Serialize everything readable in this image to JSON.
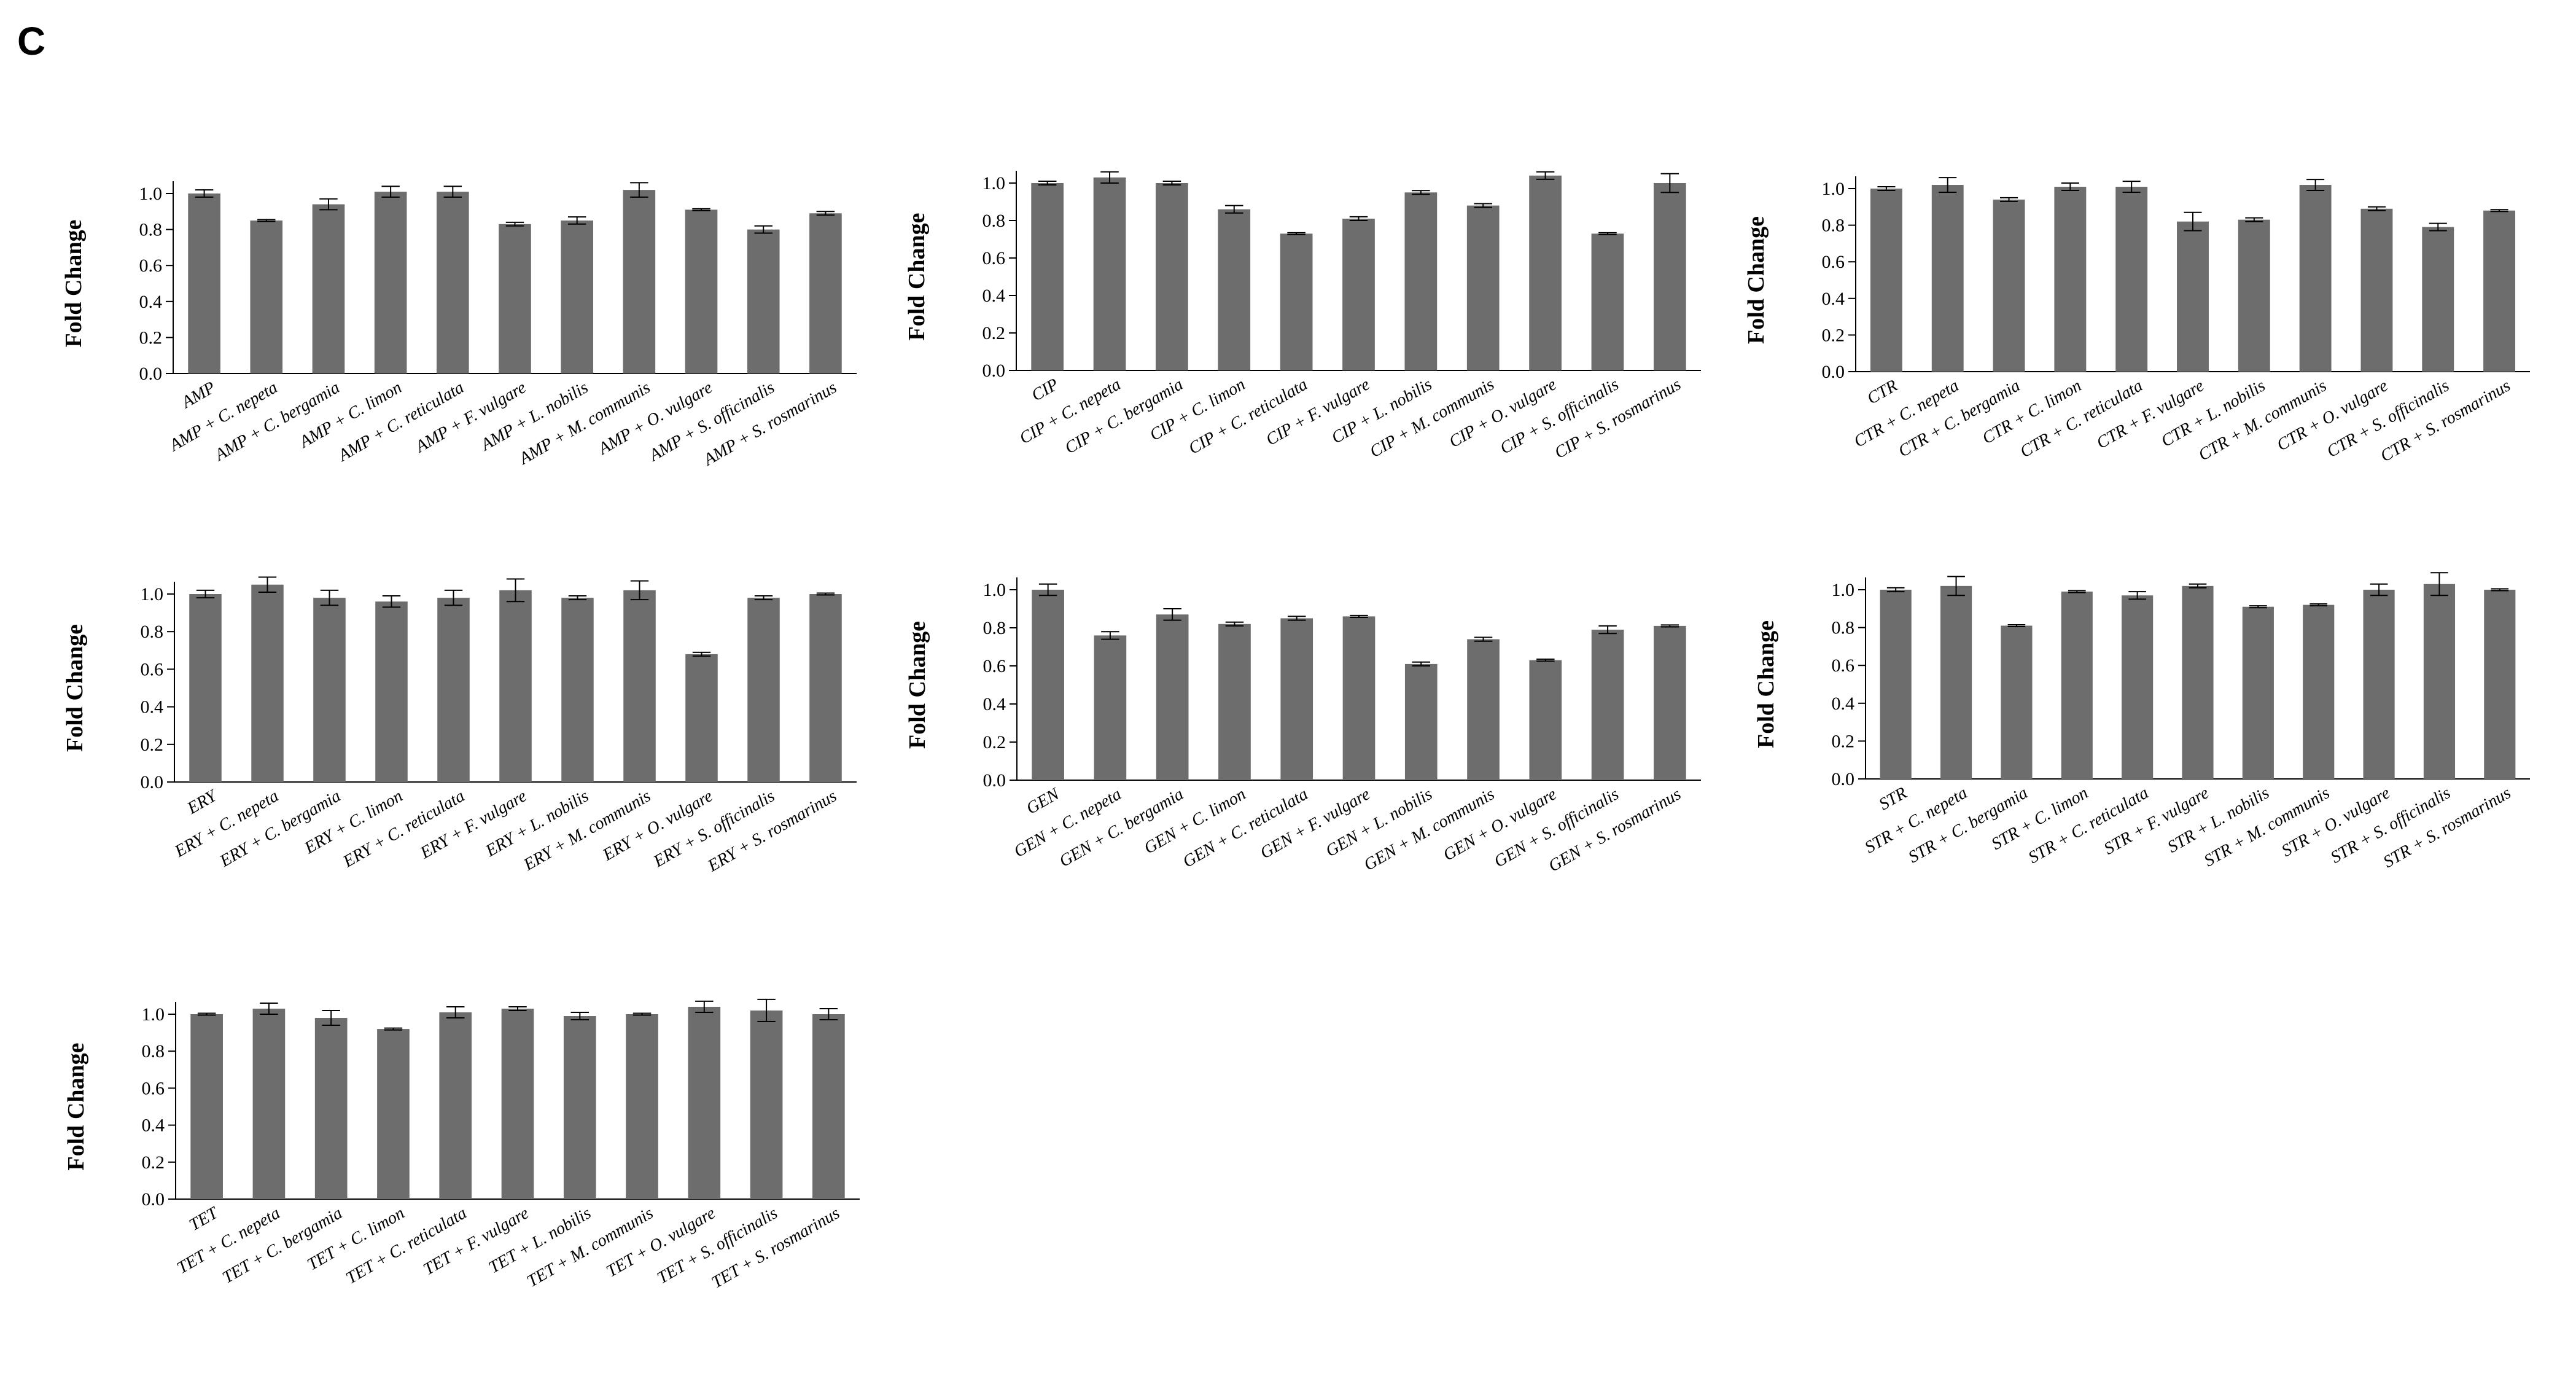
{
  "panel_label": "C",
  "colors": {
    "bar": "#6d6d6d",
    "axis": "#000000",
    "error_bar": "#000000"
  },
  "chart_data": [
    {
      "type": "bar",
      "ylabel": "Fold Change",
      "ylim": [
        0,
        1.0
      ],
      "yticks": [
        "0.0",
        "0.2",
        "0.4",
        "0.6",
        "0.8",
        "1.0"
      ],
      "categories": [
        "AMP",
        "AMP + C. nepeta",
        "AMP + C. bergamia",
        "AMP + C. limon",
        "AMP + C. reticulata",
        "AMP + F. vulgare",
        "AMP + L. nobilis",
        "AMP + M. communis",
        "AMP + O. vulgare",
        "AMP + S. officinalis",
        "AMP + S. rosmarinus"
      ],
      "values": [
        1.0,
        0.85,
        0.94,
        1.01,
        1.01,
        0.83,
        0.85,
        1.02,
        0.91,
        0.8,
        0.89
      ],
      "errors": [
        0.02,
        0.005,
        0.03,
        0.03,
        0.03,
        0.01,
        0.02,
        0.04,
        0.005,
        0.02,
        0.01
      ]
    },
    {
      "type": "bar",
      "ylabel": "Fold Change",
      "ylim": [
        0,
        1.0
      ],
      "yticks": [
        "0.0",
        "0.2",
        "0.4",
        "0.6",
        "0.8",
        "1.0"
      ],
      "categories": [
        "CIP",
        "CIP + C. nepeta",
        "CIP + C. bergamia",
        "CIP + C. limon",
        "CIP + C. reticulata",
        "CIP + F. vulgare",
        "CIP + L. nobilis",
        "CIP + M. communis",
        "CIP + O. vulgare",
        "CIP + S. officinalis",
        "CIP + S. rosmarinus"
      ],
      "values": [
        1.0,
        1.03,
        1.0,
        0.86,
        0.73,
        0.81,
        0.95,
        0.88,
        1.04,
        0.73,
        1.0
      ],
      "errors": [
        0.01,
        0.03,
        0.01,
        0.02,
        0.005,
        0.01,
        0.01,
        0.01,
        0.02,
        0.005,
        0.05
      ]
    },
    {
      "type": "bar",
      "ylabel": "Fold Change",
      "ylim": [
        0,
        1.0
      ],
      "yticks": [
        "0.0",
        "0.2",
        "0.4",
        "0.6",
        "0.8",
        "1.0"
      ],
      "categories": [
        "CTR",
        "CTR + C. nepeta",
        "CTR + C. bergamia",
        "CTR + C. limon",
        "CTR + C. reticulata",
        "CTR + F. vulgare",
        "CTR + L. nobilis",
        "CTR + M. communis",
        "CTR + O. vulgare",
        "CTR + S. officinalis",
        "CTR + S. rosmarinus"
      ],
      "values": [
        1.0,
        1.02,
        0.94,
        1.01,
        1.01,
        0.82,
        0.83,
        1.02,
        0.89,
        0.79,
        0.88
      ],
      "errors": [
        0.01,
        0.04,
        0.01,
        0.02,
        0.03,
        0.05,
        0.01,
        0.03,
        0.01,
        0.02,
        0.005
      ]
    },
    {
      "type": "bar",
      "ylabel": "Fold Change",
      "ylim": [
        0,
        1.0
      ],
      "yticks": [
        "0.0",
        "0.2",
        "0.4",
        "0.6",
        "0.8",
        "1.0"
      ],
      "categories": [
        "ERY",
        "ERY + C. nepeta",
        "ERY + C. bergamia",
        "ERY + C. limon",
        "ERY + C. reticulata",
        "ERY + F. vulgare",
        "ERY + L. nobilis",
        "ERY + M. communis",
        "ERY + O. vulgare",
        "ERY + S. officinalis",
        "ERY + S. rosmarinus"
      ],
      "values": [
        1.0,
        1.05,
        0.98,
        0.96,
        0.98,
        1.02,
        0.98,
        1.02,
        0.68,
        0.98,
        1.0
      ],
      "errors": [
        0.02,
        0.04,
        0.04,
        0.03,
        0.04,
        0.06,
        0.01,
        0.05,
        0.01,
        0.01,
        0.005
      ]
    },
    {
      "type": "bar",
      "ylabel": "Fold Change",
      "ylim": [
        0,
        1.0
      ],
      "yticks": [
        "0.0",
        "0.2",
        "0.4",
        "0.6",
        "0.8",
        "1.0"
      ],
      "categories": [
        "GEN",
        "GEN + C. nepeta",
        "GEN + C. bergamia",
        "GEN + C. limon",
        "GEN + C. reticulata",
        "GEN + F. vulgare",
        "GEN + L. nobilis",
        "GEN + M. communis",
        "GEN + O. vulgare",
        "GEN + S. officinalis",
        "GEN + S. rosmarinus"
      ],
      "values": [
        1.0,
        0.76,
        0.87,
        0.82,
        0.85,
        0.86,
        0.61,
        0.74,
        0.63,
        0.79,
        0.81
      ],
      "errors": [
        0.03,
        0.02,
        0.03,
        0.01,
        0.01,
        0.005,
        0.01,
        0.01,
        0.005,
        0.02,
        0.005
      ]
    },
    {
      "type": "bar",
      "ylabel": "Fold Change",
      "ylim": [
        0,
        1.0
      ],
      "yticks": [
        "0.0",
        "0.2",
        "0.4",
        "0.6",
        "0.8",
        "1.0"
      ],
      "categories": [
        "STR",
        "STR + C. nepeta",
        "STR + C. bergamia",
        "STR + C. limon",
        "STR + C. reticulata",
        "STR + F. vulgare",
        "STR + L. nobilis",
        "STR + M. communis",
        "STR + O. vulgare",
        "STR + S. officinalis",
        "STR + S. rosmarinus"
      ],
      "values": [
        1.0,
        1.02,
        0.81,
        0.99,
        0.97,
        1.02,
        0.91,
        0.92,
        1.0,
        1.03,
        1.0
      ],
      "errors": [
        0.01,
        0.05,
        0.005,
        0.005,
        0.02,
        0.01,
        0.005,
        0.005,
        0.03,
        0.06,
        0.005
      ]
    },
    {
      "type": "bar",
      "ylabel": "Fold Change",
      "ylim": [
        0,
        1.0
      ],
      "yticks": [
        "0.0",
        "0.2",
        "0.4",
        "0.6",
        "0.8",
        "1.0"
      ],
      "categories": [
        "TET",
        "TET + C. nepeta",
        "TET + C. bergamia",
        "TET + C. limon",
        "TET + C. reticulata",
        "TET + F. vulgare",
        "TET + L. nobilis",
        "TET + M. communis",
        "TET + O. vulgare",
        "TET + S. officinalis",
        "TET + S. rosmarinus"
      ],
      "values": [
        1.0,
        1.03,
        0.98,
        0.92,
        1.01,
        1.03,
        0.99,
        1.0,
        1.04,
        1.02,
        1.0
      ],
      "errors": [
        0.005,
        0.03,
        0.04,
        0.005,
        0.03,
        0.01,
        0.02,
        0.005,
        0.03,
        0.06,
        0.03
      ]
    }
  ]
}
